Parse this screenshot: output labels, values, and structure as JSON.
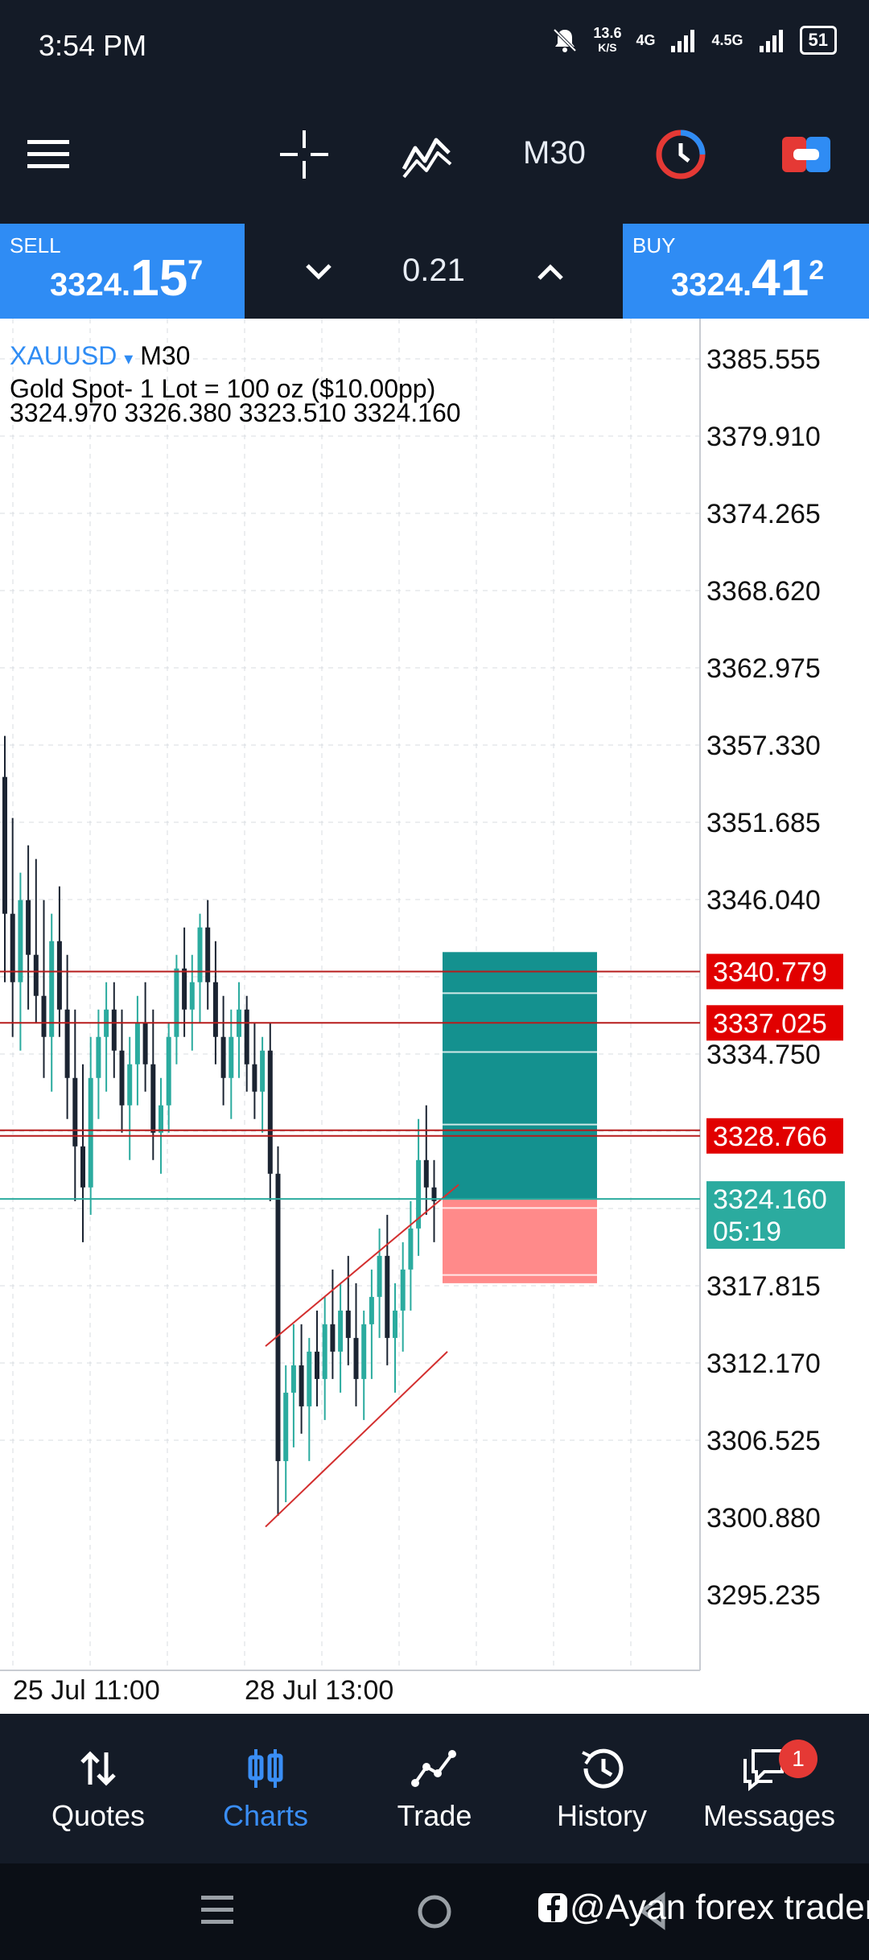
{
  "status_bar": {
    "time": "3:54 PM",
    "speed_value": "13.6",
    "speed_unit": "K/S",
    "net1": "4G",
    "net2": "4.5G",
    "battery": "51"
  },
  "toolbar": {
    "timeframe": "M30"
  },
  "trade": {
    "sell_label": "SELL",
    "sell_price_head": "3324.",
    "sell_price_big": "15",
    "sell_price_sup": "7",
    "buy_label": "BUY",
    "buy_price_head": "3324.",
    "buy_price_big": "41",
    "buy_price_sup": "2",
    "lot": "0.21"
  },
  "chart_header": {
    "symbol": "XAUUSD",
    "dropdown_marker": "▾",
    "timeframe": "M30",
    "description": "Gold Spot- 1 Lot = 100 oz ($10.00pp)",
    "ohlc": "3324.970 3326.380 3323.510 3324.160"
  },
  "chart_data": {
    "type": "candlestick",
    "symbol": "XAUUSD",
    "timeframe": "M30",
    "y_ticks": [
      "3385.555",
      "3379.910",
      "3374.265",
      "3368.620",
      "3362.975",
      "3357.330",
      "3351.685",
      "3346.040",
      "3334.750",
      "3317.815",
      "3312.170",
      "3306.525",
      "3300.880",
      "3295.235"
    ],
    "ylim": [
      3290,
      3390
    ],
    "x_labels": [
      "25 Jul 11:00",
      "28 Jul 13:00"
    ],
    "horizontal_lines": [
      {
        "price": 3340.779,
        "label": "3340.779",
        "color": "#e10000"
      },
      {
        "price": 3337.025,
        "label": "3337.025",
        "color": "#e10000"
      },
      {
        "price": 3328.766,
        "label": "3328.766",
        "color": "#e10000"
      }
    ],
    "current_price": {
      "price": 3324.16,
      "label": "3324.160",
      "countdown": "05:19",
      "color": "#2bab9f"
    },
    "position_box": {
      "entry": 3324.16,
      "take_profit": 3342.2,
      "stop_loss": 3318.0
    },
    "candles": [
      [
        3355,
        3358,
        3340,
        3345
      ],
      [
        3345,
        3352,
        3336,
        3340
      ],
      [
        3340,
        3348,
        3335,
        3346
      ],
      [
        3346,
        3350,
        3338,
        3342
      ],
      [
        3342,
        3349,
        3337,
        3339
      ],
      [
        3339,
        3346,
        3333,
        3336
      ],
      [
        3336,
        3345,
        3332,
        3343
      ],
      [
        3343,
        3347,
        3336,
        3338
      ],
      [
        3338,
        3342,
        3330,
        3333
      ],
      [
        3333,
        3338,
        3324,
        3328
      ],
      [
        3328,
        3334,
        3321,
        3325
      ],
      [
        3325,
        3336,
        3323,
        3333
      ],
      [
        3333,
        3338,
        3330,
        3336
      ],
      [
        3336,
        3340,
        3332,
        3338
      ],
      [
        3338,
        3340,
        3333,
        3335
      ],
      [
        3335,
        3338,
        3329,
        3331
      ],
      [
        3331,
        3336,
        3327,
        3334
      ],
      [
        3334,
        3339,
        3331,
        3337
      ],
      [
        3337,
        3340,
        3332,
        3334
      ],
      [
        3334,
        3338,
        3327,
        3329
      ],
      [
        3329,
        3333,
        3326,
        3331
      ],
      [
        3331,
        3337,
        3329,
        3336
      ],
      [
        3336,
        3342,
        3334,
        3341
      ],
      [
        3341,
        3344,
        3336,
        3338
      ],
      [
        3338,
        3342,
        3335,
        3340
      ],
      [
        3340,
        3345,
        3337,
        3344
      ],
      [
        3344,
        3346,
        3338,
        3340
      ],
      [
        3340,
        3343,
        3334,
        3336
      ],
      [
        3336,
        3339,
        3331,
        3333
      ],
      [
        3333,
        3338,
        3330,
        3336
      ],
      [
        3336,
        3340,
        3333,
        3338
      ],
      [
        3338,
        3339,
        3332,
        3334
      ],
      [
        3334,
        3337,
        3330,
        3332
      ],
      [
        3332,
        3336,
        3329,
        3335
      ],
      [
        3335,
        3337,
        3324,
        3326
      ],
      [
        3326,
        3328,
        3301,
        3305
      ],
      [
        3305,
        3312,
        3302,
        3310
      ],
      [
        3310,
        3315,
        3306,
        3312
      ],
      [
        3312,
        3315,
        3307,
        3309
      ],
      [
        3309,
        3314,
        3305,
        3313
      ],
      [
        3313,
        3316,
        3309,
        3311
      ],
      [
        3311,
        3317,
        3308,
        3315
      ],
      [
        3315,
        3319,
        3311,
        3313
      ],
      [
        3313,
        3318,
        3310,
        3316
      ],
      [
        3316,
        3320,
        3312,
        3314
      ],
      [
        3314,
        3318,
        3309,
        3311
      ],
      [
        3311,
        3316,
        3308,
        3315
      ],
      [
        3315,
        3319,
        3311,
        3317
      ],
      [
        3317,
        3322,
        3314,
        3320
      ],
      [
        3320,
        3323,
        3312,
        3314
      ],
      [
        3314,
        3318,
        3310,
        3316
      ],
      [
        3316,
        3321,
        3313,
        3319
      ],
      [
        3319,
        3324,
        3316,
        3322
      ],
      [
        3322,
        3330,
        3320,
        3327
      ],
      [
        3327,
        3331,
        3323,
        3325
      ],
      [
        3325,
        3327,
        3321,
        3324
      ]
    ]
  },
  "bottom_nav": [
    {
      "label": "Quotes",
      "icon": "arrows-updown-icon",
      "active": false
    },
    {
      "label": "Charts",
      "icon": "candles-icon",
      "active": true
    },
    {
      "label": "Trade",
      "icon": "trend-icon",
      "active": false
    },
    {
      "label": "History",
      "icon": "history-icon",
      "active": false
    },
    {
      "label": "Messages",
      "icon": "chat-icon",
      "active": false,
      "badge": "1"
    }
  ],
  "watermark": "@Ayan forex trader",
  "colors": {
    "bull": "#2bab9f",
    "bear": "#1b2432",
    "accent": "#2f8cf4",
    "level": "#e10000",
    "tp_box": "#14918f",
    "sl_box": "#ff8a8a"
  }
}
